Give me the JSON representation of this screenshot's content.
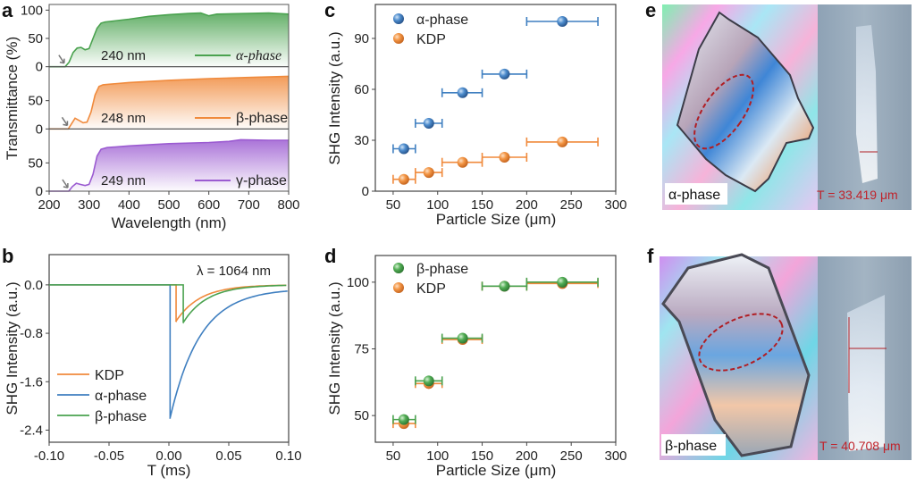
{
  "figure": {
    "panels": [
      "a",
      "b",
      "c",
      "d",
      "e",
      "f"
    ]
  },
  "chart_data": [
    {
      "id": "a",
      "type": "area",
      "xlabel": "Wavelength (nm)",
      "ylabel": "Transmittance (%)",
      "xlim": [
        200,
        800
      ],
      "ylim": [
        0,
        100
      ],
      "xticks": [
        200,
        300,
        400,
        500,
        600,
        700,
        800
      ],
      "yticks": [
        0,
        50,
        100
      ],
      "stacked_subplots": 3,
      "series": [
        {
          "name": "α-phase",
          "color": "#4aa24f",
          "cutoff_label": "240 nm",
          "cutoff": 240,
          "x": [
            200,
            240,
            250,
            260,
            270,
            280,
            290,
            300,
            310,
            320,
            330,
            340,
            400,
            450,
            500,
            550,
            580,
            600,
            620,
            700,
            750,
            800
          ],
          "y": [
            0,
            0,
            8,
            25,
            33,
            34,
            30,
            32,
            50,
            68,
            77,
            79,
            84,
            89,
            92,
            94,
            95,
            90,
            93,
            94,
            95,
            93
          ]
        },
        {
          "name": "β-phase",
          "color": "#f08a3c",
          "cutoff_label": "248 nm",
          "cutoff": 248,
          "x": [
            200,
            248,
            255,
            265,
            275,
            285,
            295,
            305,
            315,
            325,
            335,
            350,
            400,
            500,
            600,
            700,
            800
          ],
          "y": [
            0,
            0,
            8,
            19,
            15,
            11,
            12,
            30,
            60,
            75,
            78,
            79,
            82,
            86,
            89,
            91,
            93
          ]
        },
        {
          "name": "γ-phase",
          "color": "#9b5bd1",
          "cutoff_label": "249 nm",
          "cutoff": 249,
          "x": [
            200,
            249,
            258,
            268,
            278,
            290,
            300,
            310,
            320,
            330,
            345,
            400,
            500,
            600,
            650,
            680,
            750,
            800
          ],
          "y": [
            0,
            0,
            8,
            14,
            12,
            10,
            12,
            30,
            62,
            74,
            77,
            80,
            84,
            86,
            88,
            91,
            90,
            90
          ]
        }
      ]
    },
    {
      "id": "b",
      "type": "line",
      "xlabel": "T (ms)",
      "ylabel": "SHG Intensity (a.u.)",
      "xlim": [
        -0.1,
        0.1
      ],
      "ylim": [
        -2.6,
        0.5
      ],
      "xticks": [
        -0.1,
        -0.05,
        0.0,
        0.05,
        0.1
      ],
      "xtick_labels": [
        "-0.10",
        "-0.05",
        "0.00",
        "0.05",
        "0.10"
      ],
      "yticks": [
        0.0,
        -0.8,
        -1.6,
        -2.4
      ],
      "ytick_labels": [
        "0.0",
        "-0.8",
        "-1.6",
        "-2.4"
      ],
      "annotation": "λ = 1064 nm",
      "series": [
        {
          "name": "KDP",
          "color": "#f08a3c",
          "onset": 0.006,
          "peak": -0.6,
          "tau": 0.02
        },
        {
          "name": "α-phase",
          "color": "#3f7fc0",
          "onset": 0.001,
          "peak": -2.2,
          "tau": 0.025,
          "tail": -0.06
        },
        {
          "name": "β-phase",
          "color": "#4aa24f",
          "onset": 0.012,
          "peak": -0.62,
          "tau": 0.02
        }
      ]
    },
    {
      "id": "c",
      "type": "scatter",
      "xlabel": "Particle Size (μm)",
      "ylabel": "SHG Intensity (a.u.)",
      "xlim": [
        30,
        300
      ],
      "ylim": [
        0,
        110
      ],
      "xticks": [
        50,
        100,
        150,
        200,
        250,
        300
      ],
      "yticks": [
        0,
        30,
        60,
        90
      ],
      "legend": "top-left",
      "series": [
        {
          "name": "α-phase",
          "color": "#3f7fc0",
          "x": [
            62,
            90,
            128,
            175,
            240
          ],
          "y": [
            25,
            40,
            58,
            69,
            100
          ],
          "x_err": [
            [
              50,
              75
            ],
            [
              75,
              105
            ],
            [
              105,
              150
            ],
            [
              150,
              200
            ],
            [
              200,
              280
            ]
          ]
        },
        {
          "name": "KDP",
          "color": "#f08a3c",
          "x": [
            62,
            90,
            128,
            175,
            240
          ],
          "y": [
            7,
            11,
            17,
            20,
            29
          ],
          "x_err": [
            [
              50,
              75
            ],
            [
              75,
              105
            ],
            [
              105,
              150
            ],
            [
              150,
              200
            ],
            [
              200,
              280
            ]
          ]
        }
      ]
    },
    {
      "id": "d",
      "type": "scatter",
      "xlabel": "Particle Size (μm)",
      "ylabel": "SHG Intensity (a.u.)",
      "xlim": [
        30,
        300
      ],
      "ylim": [
        40,
        110
      ],
      "xticks": [
        50,
        100,
        150,
        200,
        250,
        300
      ],
      "yticks": [
        50,
        75,
        100
      ],
      "legend": "top-left",
      "series": [
        {
          "name": "β-phase",
          "color": "#4aa24f",
          "x": [
            62,
            90,
            128,
            175,
            240
          ],
          "y": [
            48.5,
            63,
            79,
            98.5,
            100
          ],
          "x_err": [
            [
              50,
              75
            ],
            [
              75,
              105
            ],
            [
              105,
              150
            ],
            [
              150,
              200
            ],
            [
              200,
              280
            ]
          ]
        },
        {
          "name": "KDP",
          "color": "#f08a3c",
          "x": [
            62,
            90,
            128,
            175,
            240
          ],
          "y": [
            47,
            62,
            78.5,
            98.5,
            99.5
          ],
          "x_err": [
            [
              50,
              75
            ],
            [
              75,
              105
            ],
            [
              105,
              150
            ],
            [
              150,
              200
            ],
            [
              200,
              280
            ]
          ]
        }
      ]
    }
  ],
  "images": {
    "e": {
      "phase_label": "α-phase",
      "thickness_label": "T = 33.419 μm"
    },
    "f": {
      "phase_label": "β-phase",
      "thickness_label": "T = 40.708 μm"
    }
  },
  "colors": {
    "green": "#4aa24f",
    "orange": "#f08a3c",
    "purple": "#9b5bd1",
    "blue": "#3f7fc0",
    "annotation_red": "#c0232b"
  }
}
